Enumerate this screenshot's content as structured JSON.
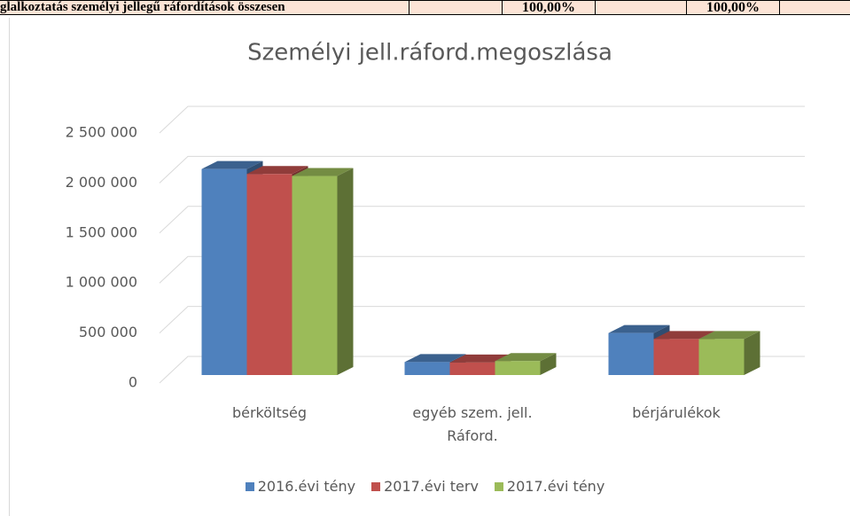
{
  "table_row": {
    "cells": [
      "glalkoztatás személyi jellegű ráfordítások összesen",
      "",
      "100,00%",
      "",
      "100,00%"
    ]
  },
  "chart_data": {
    "type": "bar3d",
    "title": "Személyi jell.ráford.megoszlása",
    "categories": [
      "bérköltség",
      "egyéb szem. jell. Ráford.",
      "bérjárulékok"
    ],
    "series": [
      {
        "name": "2016.évi tény",
        "color": "#4f81bd",
        "values": [
          2060000,
          130000,
          420000
        ]
      },
      {
        "name": "2017.évi terv",
        "color": "#c0504d",
        "values": [
          2010000,
          125000,
          360000
        ]
      },
      {
        "name": "2017.évi tény",
        "color": "#9bbb59",
        "values": [
          1990000,
          140000,
          360000
        ]
      }
    ],
    "ylim": [
      0,
      2500000
    ],
    "yticks": [
      0,
      {
        "value": 500000,
        "label": "500 000"
      },
      {
        "value": 1000000,
        "label": "1 000 000"
      },
      {
        "value": 1500000,
        "label": "1 500 000"
      },
      {
        "value": 2000000,
        "label": "2 000 000"
      },
      {
        "value": 2500000,
        "label": "2 500 000"
      }
    ],
    "grid": true,
    "legend": "bottom"
  }
}
